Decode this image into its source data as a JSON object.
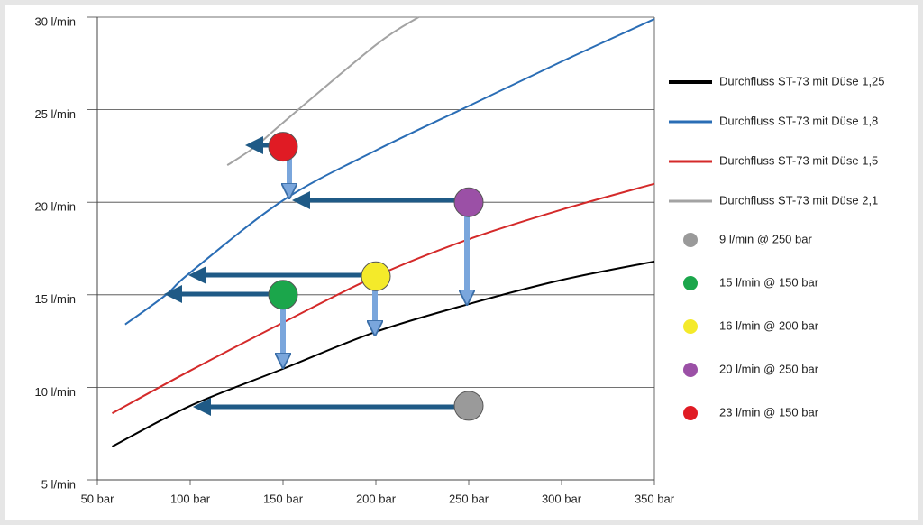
{
  "chart_data": {
    "type": "line",
    "xlim": [
      50,
      350
    ],
    "xticks": [
      {
        "value": 50,
        "label": "50 bar"
      },
      {
        "value": 100,
        "label": "100 bar"
      },
      {
        "value": 150,
        "label": "150 bar"
      },
      {
        "value": 200,
        "label": "200 bar"
      },
      {
        "value": 250,
        "label": "250 bar"
      },
      {
        "value": 300,
        "label": "300 bar"
      },
      {
        "value": 350,
        "label": "350 bar"
      }
    ],
    "ylim": [
      5,
      30
    ],
    "yticks": [
      {
        "value": 5,
        "label": "5 l/min"
      },
      {
        "value": 10,
        "label": "10 l/min"
      },
      {
        "value": 15,
        "label": "15 l/min"
      },
      {
        "value": 20,
        "label": "20 l/min"
      },
      {
        "value": 25,
        "label": "25 l/min"
      },
      {
        "value": 30,
        "label": "30 l/min"
      }
    ],
    "grid": true,
    "series": [
      {
        "name": "Durchfluss ST-73 mit Düse 1,25",
        "color": "#000000",
        "x": [
          58,
          100,
          150,
          200,
          250,
          300,
          350
        ],
        "values": [
          6.8,
          9.0,
          11.0,
          13.0,
          14.5,
          15.8,
          16.8
        ]
      },
      {
        "name": "Durchfluss ST-73 mit Düse 1,8",
        "color": "#2a6db5",
        "x": [
          65,
          87,
          100,
          150,
          200,
          250,
          300,
          350
        ],
        "values": [
          13.4,
          15.0,
          16.2,
          20.1,
          22.8,
          25.2,
          27.6,
          29.9
        ]
      },
      {
        "name": "Durchfluss ST-73 mit Düse 1,5",
        "color": "#d42a2a",
        "x": [
          58,
          100,
          150,
          200,
          250,
          300,
          350
        ],
        "values": [
          8.6,
          10.9,
          13.5,
          16.0,
          18.0,
          19.6,
          21.0
        ]
      },
      {
        "name": "Durchfluss ST-73 mit Düse 2,1",
        "color": "#a3a3a3",
        "x": [
          120,
          135,
          150,
          200,
          223
        ],
        "values": [
          22.0,
          23.0,
          24.3,
          28.5,
          30.0
        ]
      }
    ],
    "points": [
      {
        "name": "9 l/min @ 250 bar",
        "color": "#9a9a9a",
        "x": [
          250
        ],
        "values": [
          9
        ]
      },
      {
        "name": "15 l/min @ 150 bar",
        "color": "#1ba64b",
        "x": [
          150
        ],
        "values": [
          15
        ]
      },
      {
        "name": "16 l/min @ 200 bar",
        "color": "#f4ea2a",
        "x": [
          200
        ],
        "values": [
          16
        ]
      },
      {
        "name": "20 l/min @ 250 bar",
        "color": "#9b50a6",
        "x": [
          250
        ],
        "values": [
          20
        ]
      },
      {
        "name": "23 l/min @ 150 bar",
        "color": "#e01b24",
        "x": [
          150
        ],
        "values": [
          23
        ]
      }
    ]
  }
}
